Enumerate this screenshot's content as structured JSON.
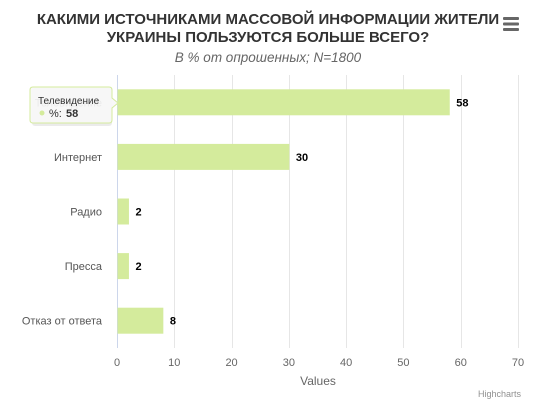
{
  "chart_data": {
    "type": "bar",
    "orientation": "horizontal",
    "title": "КАКИМИ ИСТОЧНИКАМИ МАССОВОЙ ИНФОРМАЦИИ ЖИТЕЛИ УКРАИНЫ ПОЛЬЗУЮТСЯ БОЛЬШЕ ВСЕГО?",
    "title_lines": [
      "КАКИМИ ИСТОЧНИКАМИ МАССОВОЙ ИНФОРМАЦИИ ЖИТЕЛИ",
      "УКРАИНЫ ПОЛЬЗУЮТСЯ БОЛЬШЕ ВСЕГО?"
    ],
    "subtitle": "В % от опрошенных; N=1800",
    "categories": [
      "Телевидение",
      "Интернет",
      "Радио",
      "Пресса",
      "Отказ от ответа"
    ],
    "series": [
      {
        "name": "%",
        "values": [
          58,
          30,
          2,
          2,
          8
        ],
        "color": "#d4eb9c"
      }
    ],
    "xlabel": "",
    "ylabel": "Values",
    "value_axis": {
      "min": 0,
      "max": 70,
      "ticks": [
        0,
        10,
        20,
        30,
        40,
        50,
        60,
        70
      ]
    },
    "grid": true,
    "legend": "none",
    "data_labels": true
  },
  "tooltip": {
    "category": "Телевидение",
    "series_label": "%:",
    "value": "58",
    "marker_color": "#d4eb9c"
  },
  "menu": {
    "icon": "hamburger-menu-icon"
  },
  "credits": "Highcharts",
  "colors": {
    "bar": "#d4eb9c",
    "grid": "#e6e6e6",
    "axis_line": "#ccd6eb"
  }
}
